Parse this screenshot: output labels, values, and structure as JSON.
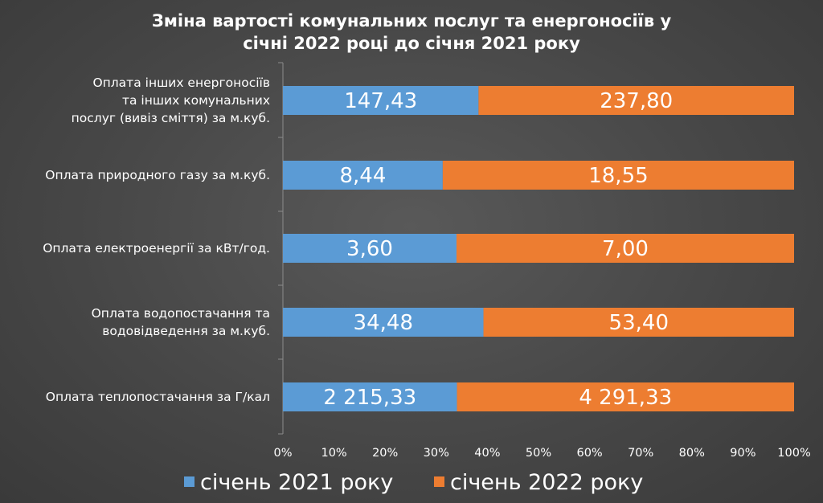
{
  "chart_data": {
    "type": "bar",
    "orientation": "horizontal",
    "stacked": "100%",
    "title": [
      "Зміна вартості комунальних послуг та енергоносіїв у",
      "січні 2022 році до січня 2021 року"
    ],
    "categories": [
      [
        "Оплата інших енергоносіїв",
        "та інших комунальних",
        "послуг (вивіз сміття) за м.куб."
      ],
      [
        "Оплата природного газу за м.куб."
      ],
      [
        "Оплата електроенергії за кВт/год."
      ],
      [
        "Оплата водопостачання та",
        "водовідведення    за м.куб."
      ],
      [
        "Оплата теплопостачання за Г/кал"
      ]
    ],
    "series": [
      {
        "name": "січень 2021 року",
        "color": "#5B9BD5",
        "values": [
          147.43,
          8.44,
          3.6,
          34.48,
          2215.33
        ],
        "labels": [
          "147,43",
          "8,44",
          "3,60",
          "34,48",
          "2 215,33"
        ]
      },
      {
        "name": "січень 2022 року",
        "color": "#ED7D31",
        "values": [
          237.8,
          18.55,
          7.0,
          53.4,
          4291.33
        ],
        "labels": [
          "237,80",
          "18,55",
          "7,00",
          "53,40",
          "4 291,33"
        ]
      }
    ],
    "x_ticks": [
      "0%",
      "10%",
      "20%",
      "30%",
      "40%",
      "50%",
      "60%",
      "70%",
      "80%",
      "90%",
      "100%"
    ],
    "xlim": [
      0,
      100
    ],
    "grid": false,
    "legend_position": "bottom"
  }
}
